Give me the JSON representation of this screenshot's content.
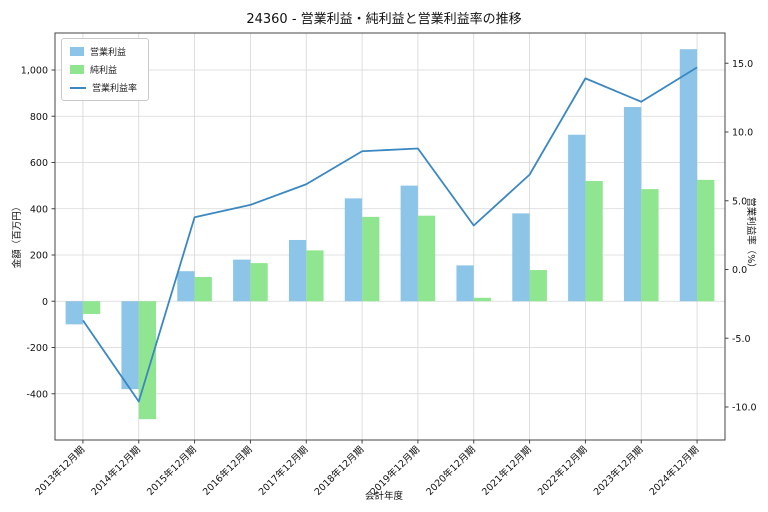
{
  "chart_data": {
    "type": "bar",
    "title": "24360 - 営業利益・純利益と営業利益率の推移",
    "xlabel": "会計年度",
    "ylabel_left": "金額（百万円）",
    "ylabel_right": "営業利益率（%）",
    "grid": true,
    "legend_position": "upper-left",
    "categories": [
      "2013年12月期",
      "2014年12月期",
      "2015年12月期",
      "2016年12月期",
      "2017年12月期",
      "2018年12月期",
      "2019年12月期",
      "2020年12月期",
      "2021年12月期",
      "2022年12月期",
      "2023年12月期",
      "2024年12月期"
    ],
    "series": [
      {
        "name": "営業利益",
        "type": "bar",
        "axis": "left",
        "color": "#8cc5e8",
        "values": [
          -100,
          -380,
          130,
          180,
          265,
          445,
          500,
          155,
          380,
          720,
          840,
          1090
        ]
      },
      {
        "name": "純利益",
        "type": "bar",
        "axis": "left",
        "color": "#90e690",
        "values": [
          -55,
          -510,
          105,
          165,
          220,
          365,
          370,
          15,
          135,
          520,
          485,
          525
        ]
      },
      {
        "name": "営業利益率",
        "type": "line",
        "axis": "right",
        "color": "#3a87c2",
        "values": [
          -3.7,
          -9.6,
          3.8,
          4.7,
          6.2,
          8.6,
          8.8,
          3.2,
          6.9,
          13.9,
          12.2,
          14.7
        ]
      }
    ],
    "left_axis": {
      "ticks": [
        -400,
        -200,
        0,
        200,
        400,
        600,
        800,
        1000
      ],
      "min": -600,
      "max": 1160
    },
    "right_axis": {
      "ticks": [
        -10,
        -5,
        0,
        5,
        10,
        15
      ],
      "min": -12.4,
      "max": 17.2
    }
  }
}
